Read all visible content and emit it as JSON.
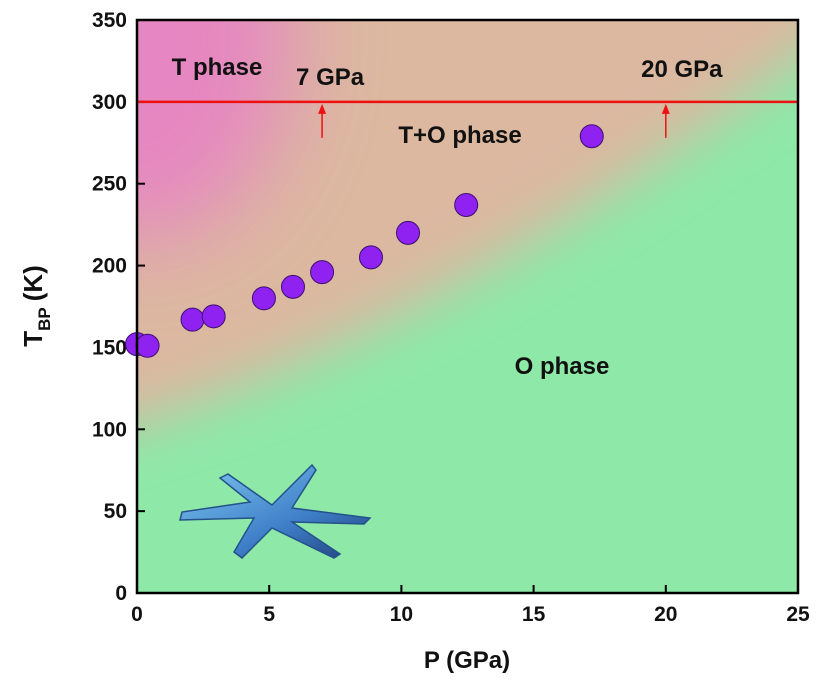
{
  "chart_data": {
    "type": "scatter",
    "xlabel": "P (GPa)",
    "ylabel": "T",
    "ylabel_sub": "BP",
    "ylabel_unit": "(K)",
    "x": [
      0.0,
      0.4,
      2.1,
      2.9,
      4.8,
      5.9,
      7.0,
      8.85,
      10.25,
      12.45,
      17.2
    ],
    "values": [
      152,
      151,
      167,
      169,
      180,
      187,
      196,
      205,
      220,
      237,
      279
    ],
    "color": "#8f22f0",
    "xlim": [
      0,
      25
    ],
    "xticks": [
      0,
      5,
      10,
      15,
      20,
      25
    ],
    "ylim": [
      0,
      350
    ],
    "yticks": [
      0,
      50,
      100,
      150,
      200,
      250,
      300,
      350
    ],
    "hline": {
      "value": 300,
      "color": "#ee1111"
    },
    "markers": [
      {
        "label": "7 GPa",
        "x": 7
      },
      {
        "label": "20 GPa",
        "x": 20
      }
    ],
    "annotations": [
      "T phase",
      "T+O phase",
      "O phase"
    ]
  }
}
